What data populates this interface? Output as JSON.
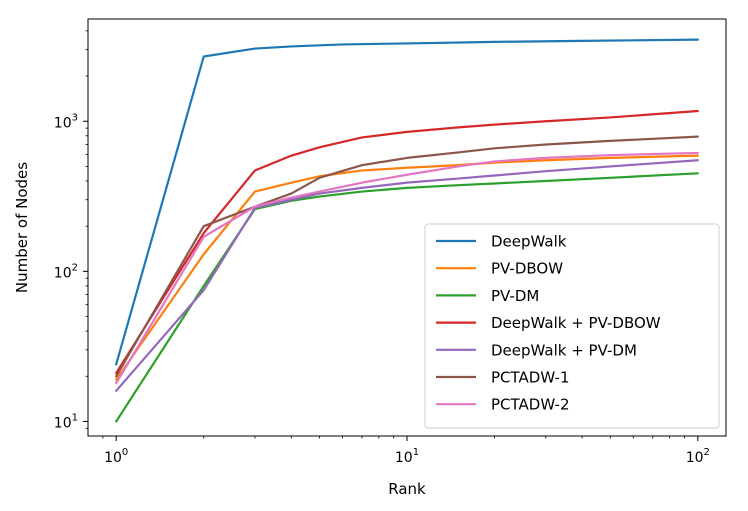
{
  "chart_data": {
    "type": "line",
    "title": "",
    "xlabel": "Rank",
    "ylabel": "Number of Nodes",
    "xscale": "log",
    "yscale": "log",
    "xlim": [
      0.8,
      125
    ],
    "ylim": [
      8,
      4800
    ],
    "x_ticks": [
      {
        "value": 1,
        "base": "10",
        "exp": "0"
      },
      {
        "value": 10,
        "base": "10",
        "exp": "1"
      },
      {
        "value": 100,
        "base": "10",
        "exp": "2"
      }
    ],
    "y_ticks": [
      {
        "value": 10,
        "base": "10",
        "exp": "1"
      },
      {
        "value": 100,
        "base": "10",
        "exp": "2"
      },
      {
        "value": 1000,
        "base": "10",
        "exp": "3"
      }
    ],
    "legend_position": "bottom-right",
    "series": [
      {
        "name": "DeepWalk",
        "color": "#1f77b4",
        "x": [
          1,
          2,
          3,
          4,
          6,
          10,
          20,
          40,
          100
        ],
        "y": [
          24,
          2700,
          3050,
          3150,
          3250,
          3300,
          3380,
          3430,
          3500
        ]
      },
      {
        "name": "PV-DBOW",
        "color": "#ff7f0e",
        "x": [
          1,
          2,
          3,
          4,
          5,
          7,
          10,
          15,
          20,
          30,
          50,
          100
        ],
        "y": [
          19,
          130,
          340,
          390,
          430,
          470,
          490,
          510,
          530,
          550,
          570,
          590
        ]
      },
      {
        "name": "PV-DM",
        "color": "#2ca02c",
        "x": [
          1,
          2,
          3,
          4,
          5,
          7,
          10,
          15,
          20,
          30,
          50,
          100
        ],
        "y": [
          10,
          80,
          260,
          295,
          315,
          340,
          360,
          375,
          385,
          400,
          420,
          450
        ]
      },
      {
        "name": "DeepWalk + PV-DBOW",
        "color": "#d62728",
        "x": [
          1,
          2,
          3,
          4,
          5,
          7,
          10,
          15,
          20,
          30,
          50,
          100
        ],
        "y": [
          21,
          180,
          470,
          590,
          670,
          780,
          850,
          910,
          950,
          1000,
          1060,
          1170
        ]
      },
      {
        "name": "DeepWalk + PV-DM",
        "color": "#9467bd",
        "x": [
          1,
          2,
          3,
          4,
          5,
          7,
          10,
          15,
          20,
          30,
          50,
          100
        ],
        "y": [
          16,
          75,
          265,
          300,
          330,
          360,
          390,
          415,
          435,
          465,
          500,
          550
        ]
      },
      {
        "name": "PCTADW-1",
        "color": "#8c564b",
        "x": [
          1,
          2,
          3,
          4,
          5,
          7,
          10,
          15,
          20,
          30,
          50,
          100
        ],
        "y": [
          20,
          200,
          270,
          330,
          420,
          510,
          570,
          620,
          660,
          700,
          740,
          790
        ]
      },
      {
        "name": "PCTADW-2",
        "color": "#e377c2",
        "x": [
          1,
          2,
          3,
          4,
          5,
          7,
          10,
          15,
          20,
          30,
          50,
          100
        ],
        "y": [
          18,
          170,
          270,
          310,
          340,
          390,
          440,
          500,
          540,
          570,
          595,
          615
        ]
      }
    ]
  }
}
